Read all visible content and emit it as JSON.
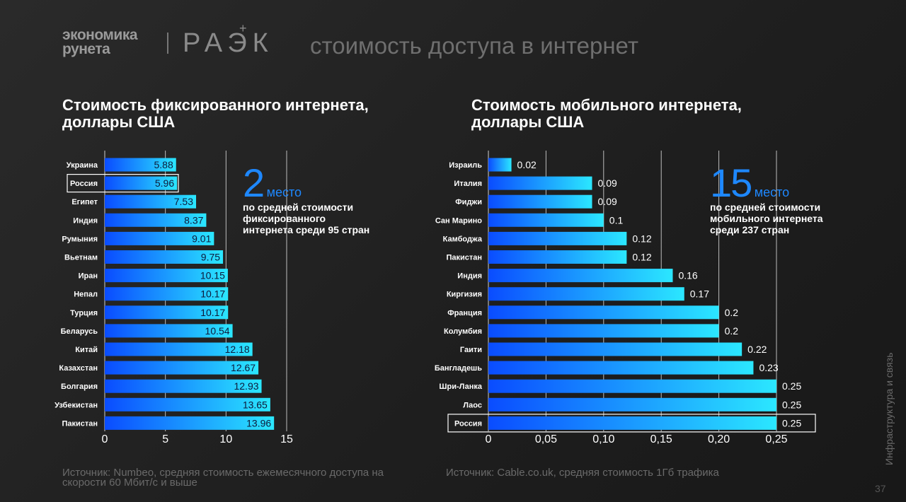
{
  "header": {
    "logo_line1": "экономика",
    "logo_line2": "рунета",
    "logo_raek": "РАЭК",
    "logo_plus": "+",
    "title": "стоимость доступа в интернет"
  },
  "chart_data": [
    {
      "type": "bar",
      "orientation": "horizontal",
      "title": "Стоимость фиксированного интернета, доллары США",
      "categories": [
        "Украина",
        "Россия",
        "Египет",
        "Индия",
        "Румыния",
        "Вьетнам",
        "Иран",
        "Непал",
        "Турция",
        "Беларусь",
        "Китай",
        "Казахстан",
        "Болгария",
        "Узбекистан",
        "Пакистан"
      ],
      "values": [
        5.88,
        5.96,
        7.53,
        8.37,
        9.01,
        9.75,
        10.15,
        10.17,
        10.17,
        10.54,
        12.18,
        12.67,
        12.93,
        13.65,
        13.96
      ],
      "value_labels": [
        "5.88",
        "5.96",
        "7.53",
        "8.37",
        "9.01",
        "9.75",
        "10.15",
        "10.17",
        "10.17",
        "10.54",
        "12.18",
        "12.67",
        "12.93",
        "13.65",
        "13.96"
      ],
      "highlight": "Россия",
      "xlim": [
        0,
        15
      ],
      "xticks": [
        0,
        5,
        10,
        15
      ],
      "xtick_labels": [
        "0",
        "5",
        "10",
        "15"
      ],
      "grid": true
    },
    {
      "type": "bar",
      "orientation": "horizontal",
      "title": "Стоимость мобильного интернета, доллары США",
      "categories": [
        "Израиль",
        "Италия",
        "Фиджи",
        "Сан Марино",
        "Камбоджа",
        "Пакистан",
        "Индия",
        "Киргизия",
        "Франция",
        "Колумбия",
        "Гаити",
        "Бангладешь",
        "Шри-Ланка",
        "Лаос",
        "Россия"
      ],
      "values": [
        0.02,
        0.09,
        0.09,
        0.1,
        0.12,
        0.12,
        0.16,
        0.17,
        0.2,
        0.2,
        0.22,
        0.23,
        0.25,
        0.25,
        0.25
      ],
      "value_labels": [
        "0.02",
        "0.09",
        "0.09",
        "0.1",
        "0.12",
        "0.12",
        "0.16",
        "0.17",
        "0.2",
        "0.2",
        "0.22",
        "0.23",
        "0.25",
        "0.25",
        "0.25"
      ],
      "highlight": "Россия",
      "xlim": [
        0,
        0.25
      ],
      "xticks": [
        0,
        0.05,
        0.1,
        0.15,
        0.2,
        0.25
      ],
      "xtick_labels": [
        "0",
        "0,05",
        "0,10",
        "0,15",
        "0,20",
        "0,25"
      ],
      "grid": true
    }
  ],
  "chart1_title_line1": "Стоимость фиксированного интернета,",
  "chart1_title_line2": "доллары США",
  "chart2_title_line1": "Стоимость мобильного интернета,",
  "chart2_title_line2": "доллары США",
  "rank1": {
    "number": "2",
    "word": "место",
    "desc": "по средней стоимости фиксированного интернета среди 95 стран"
  },
  "rank2": {
    "number": "15",
    "word": "место",
    "desc": "по средней стоимости мобильного интернета среди 237 стран"
  },
  "source1": "Источник: Numbeo, средняя стоимость ежемесячного доступа на скорости 60 Мбит/с и выше",
  "source2": "Источник: Cable.co.uk, средняя стоимость 1Гб трафика",
  "side_text": "Инфраструктура и связь",
  "page_number": "37",
  "colors": {
    "bar_start": "#0a4cff",
    "bar_end": "#2be7ff",
    "accent": "#1e88ff",
    "grid": "#d9d9d9"
  }
}
